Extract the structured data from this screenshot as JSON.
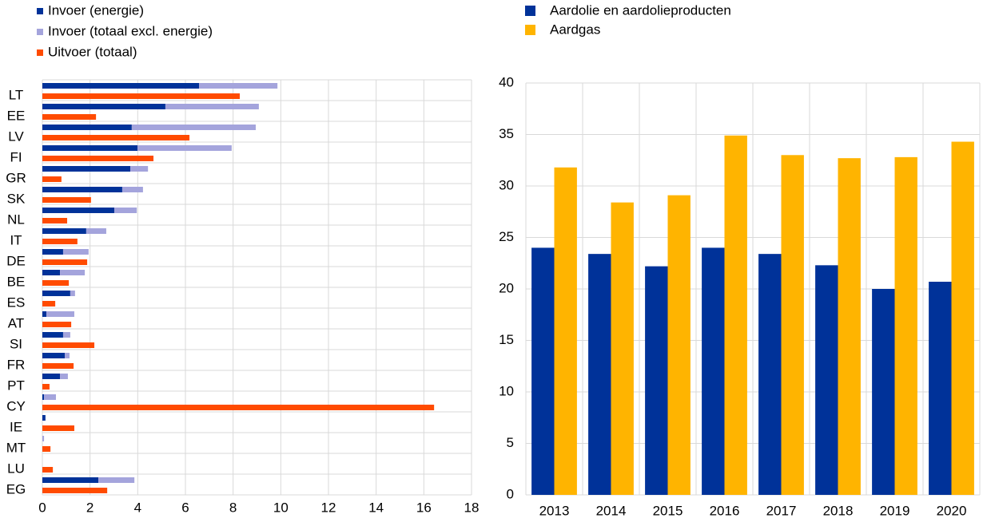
{
  "chart_data": [
    {
      "type": "hbar",
      "categories": [
        "LT",
        "EE",
        "LV",
        "FI",
        "GR",
        "SK",
        "NL",
        "IT",
        "DE",
        "BE",
        "ES",
        "AT",
        "SI",
        "FR",
        "PT",
        "CY",
        "IE",
        "MT",
        "LU",
        "EG"
      ],
      "series": [
        {
          "name": "Invoer (energie)",
          "color": "#003299",
          "stacked": true,
          "values": [
            6.57,
            5.16,
            3.75,
            3.99,
            3.69,
            3.35,
            3.02,
            1.84,
            0.87,
            0.74,
            1.17,
            0.17,
            0.87,
            0.94,
            0.74,
            0.07,
            0.13,
            0,
            0,
            2.35
          ]
        },
        {
          "name": "Invoer (totaal excl. energie)",
          "color": "#a4a4dc",
          "stacked": true,
          "values": [
            3.29,
            3.92,
            5.2,
            3.95,
            0.74,
            0.87,
            0.94,
            0.84,
            1.07,
            1.04,
            0.2,
            1.17,
            0.3,
            0.2,
            0.33,
            0.5,
            0,
            0.07,
            0,
            1.51
          ]
        },
        {
          "name": "Uitvoer (totaal)",
          "color": "#ff4b00",
          "stacked": false,
          "values": [
            8.28,
            2.25,
            6.17,
            4.66,
            0.8,
            2.04,
            1.04,
            1.47,
            1.88,
            1.11,
            0.54,
            1.21,
            2.18,
            1.31,
            0.3,
            16.43,
            1.34,
            0.34,
            0.44,
            2.72
          ]
        }
      ],
      "xlim": [
        0,
        18
      ],
      "xticks": [
        0,
        2,
        4,
        6,
        8,
        10,
        12,
        14,
        16,
        18
      ],
      "grid": true
    },
    {
      "type": "bar",
      "categories": [
        "2013",
        "2014",
        "2015",
        "2016",
        "2017",
        "2018",
        "2019",
        "2020"
      ],
      "series": [
        {
          "name": "Aardolie en aardolieproducten",
          "color": "#003299",
          "values": [
            24.0,
            23.4,
            22.2,
            24.0,
            23.4,
            22.3,
            20.0,
            20.7
          ]
        },
        {
          "name": "Aardgas",
          "color": "#ffb400",
          "values": [
            31.8,
            28.4,
            29.1,
            34.9,
            33.0,
            32.7,
            32.8,
            34.3
          ]
        }
      ],
      "ylim": [
        0,
        40
      ],
      "yticks": [
        0,
        5,
        10,
        15,
        20,
        25,
        30,
        35,
        40
      ],
      "grid": true
    }
  ]
}
